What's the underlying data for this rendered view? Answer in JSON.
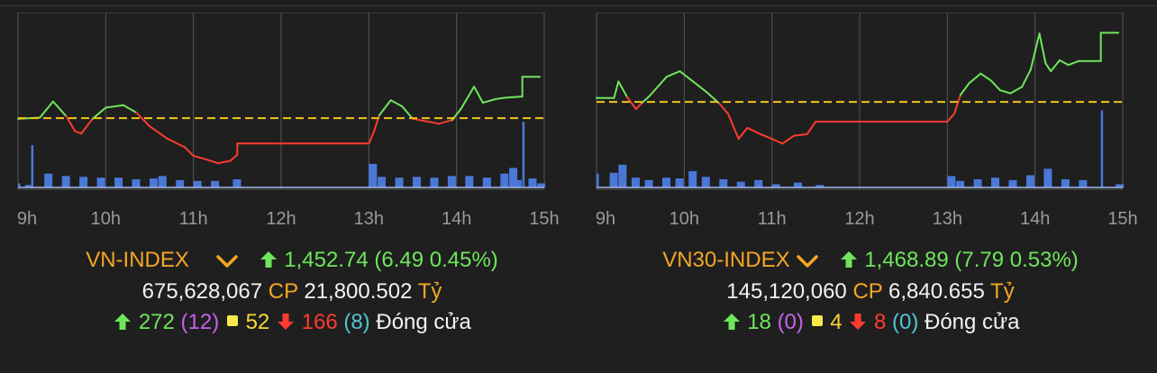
{
  "colors": {
    "up": "#6ee65a",
    "down": "#ff3b2f",
    "reference": "#f5c518",
    "volume": "#4a78d8",
    "grid": "#555555",
    "label": "#9a9a9a"
  },
  "chart_data": [
    {
      "type": "line",
      "index_name": "VN-INDEX",
      "x_ticks": [
        "9h",
        "10h",
        "11h",
        "12h",
        "13h",
        "14h",
        "15h"
      ],
      "reference_value": 1446.25,
      "ylim": [
        1440.5,
        1454.5
      ],
      "series": [
        {
          "values": [
            [
              9.0,
              1446.2
            ],
            [
              9.25,
              1446.3
            ],
            [
              9.4,
              1447.6
            ],
            [
              9.55,
              1446.4
            ],
            [
              9.65,
              1445.2
            ],
            [
              9.72,
              1445.0
            ],
            [
              9.85,
              1446.2
            ],
            [
              10.0,
              1447.1
            ],
            [
              10.2,
              1447.3
            ],
            [
              10.35,
              1446.7
            ],
            [
              10.5,
              1445.6
            ],
            [
              10.7,
              1444.6
            ],
            [
              10.9,
              1443.9
            ],
            [
              11.0,
              1443.2
            ],
            [
              11.15,
              1442.9
            ],
            [
              11.28,
              1442.6
            ],
            [
              11.42,
              1442.8
            ],
            [
              11.5,
              1443.3
            ],
            [
              11.5,
              1444.2
            ],
            [
              12.0,
              1444.2
            ],
            [
              13.0,
              1444.2
            ],
            [
              13.05,
              1445.0
            ],
            [
              13.12,
              1446.5
            ],
            [
              13.25,
              1447.7
            ],
            [
              13.38,
              1447.2
            ],
            [
              13.5,
              1446.2
            ],
            [
              13.65,
              1446.0
            ],
            [
              13.8,
              1445.8
            ],
            [
              13.95,
              1446.1
            ],
            [
              14.05,
              1447.0
            ],
            [
              14.2,
              1448.8
            ],
            [
              14.3,
              1447.5
            ],
            [
              14.45,
              1447.8
            ],
            [
              14.55,
              1447.9
            ],
            [
              14.75,
              1448.0
            ],
            [
              14.75,
              1449.6
            ],
            [
              14.95,
              1449.6
            ]
          ]
        }
      ],
      "volume": {
        "x": [
          9.0,
          9.08,
          9.15,
          9.3,
          9.5,
          9.7,
          9.9,
          10.1,
          10.3,
          10.5,
          10.6,
          10.8,
          11.0,
          11.2,
          11.45,
          13.0,
          13.1,
          13.3,
          13.5,
          13.7,
          13.9,
          14.1,
          14.3,
          14.5,
          14.6,
          14.65,
          14.75,
          14.82,
          14.92
        ],
        "values": [
          5,
          3,
          52,
          17,
          14,
          13,
          12,
          12,
          10,
          11,
          14,
          9,
          8,
          8,
          10,
          29,
          13,
          12,
          13,
          12,
          14,
          14,
          12,
          17,
          24,
          9,
          81,
          11,
          5
        ],
        "ylim": [
          0,
          100
        ]
      },
      "summary": {
        "name": "VN-INDEX",
        "value": "1,452.74",
        "change": "(6.49 0.45%)",
        "volume": "675,628,067",
        "cp_label": "CP",
        "amount": "21,800.502",
        "unit": "Tỷ",
        "advancers": "272",
        "ceiling": "(12)",
        "unchanged": "52",
        "decliners": "166",
        "floor": "(8)",
        "status": "Đóng cửa"
      }
    },
    {
      "type": "line",
      "index_name": "VN30-INDEX",
      "x_ticks": [
        "9h",
        "10h",
        "11h",
        "12h",
        "13h",
        "14h",
        "15h"
      ],
      "reference_value": 1461.1,
      "ylim": [
        1450.0,
        1472.0
      ],
      "series": [
        {
          "values": [
            [
              9.0,
              1461.6
            ],
            [
              9.2,
              1461.6
            ],
            [
              9.25,
              1463.7
            ],
            [
              9.35,
              1461.7
            ],
            [
              9.45,
              1460.2
            ],
            [
              9.52,
              1461.0
            ],
            [
              9.6,
              1461.8
            ],
            [
              9.8,
              1464.3
            ],
            [
              9.95,
              1465.0
            ],
            [
              10.1,
              1463.7
            ],
            [
              10.25,
              1462.4
            ],
            [
              10.4,
              1460.9
            ],
            [
              10.5,
              1459.6
            ],
            [
              10.62,
              1456.4
            ],
            [
              10.72,
              1457.8
            ],
            [
              10.85,
              1457.1
            ],
            [
              11.0,
              1456.4
            ],
            [
              11.12,
              1455.8
            ],
            [
              11.25,
              1456.8
            ],
            [
              11.4,
              1457.0
            ],
            [
              11.5,
              1458.6
            ],
            [
              12.0,
              1458.6
            ],
            [
              13.0,
              1458.6
            ],
            [
              13.08,
              1459.6
            ],
            [
              13.15,
              1462.0
            ],
            [
              13.25,
              1463.5
            ],
            [
              13.38,
              1464.7
            ],
            [
              13.5,
              1463.8
            ],
            [
              13.6,
              1462.6
            ],
            [
              13.72,
              1462.2
            ],
            [
              13.85,
              1463.0
            ],
            [
              13.95,
              1465.2
            ],
            [
              14.05,
              1469.8
            ],
            [
              14.12,
              1466.0
            ],
            [
              14.18,
              1465.0
            ],
            [
              14.28,
              1466.4
            ],
            [
              14.38,
              1465.8
            ],
            [
              14.5,
              1466.3
            ],
            [
              14.75,
              1466.3
            ],
            [
              14.75,
              1469.9
            ],
            [
              14.95,
              1469.9
            ]
          ]
        }
      ],
      "volume": {
        "x": [
          9.0,
          9.15,
          9.25,
          9.4,
          9.55,
          9.75,
          9.9,
          10.05,
          10.2,
          10.4,
          10.6,
          10.8,
          11.0,
          11.25,
          11.5,
          13.0,
          13.1,
          13.3,
          13.5,
          13.7,
          13.9,
          14.1,
          14.3,
          14.5,
          14.75,
          14.92
        ],
        "values": [
          17,
          18,
          28,
          12,
          9,
          12,
          11,
          20,
          13,
          10,
          7,
          9,
          4,
          6,
          3,
          14,
          8,
          10,
          12,
          9,
          15,
          23,
          10,
          9,
          95,
          4
        ],
        "ylim": [
          0,
          100
        ]
      },
      "summary": {
        "name": "VN30-INDEX",
        "value": "1,468.89",
        "change": "(7.79 0.53%)",
        "volume": "145,120,060",
        "cp_label": "CP",
        "amount": "6,840.655",
        "unit": "Tỷ",
        "advancers": "18",
        "ceiling": "(0)",
        "unchanged": "4",
        "decliners": "8",
        "floor": "(0)",
        "status": "Đóng cửa"
      }
    }
  ]
}
